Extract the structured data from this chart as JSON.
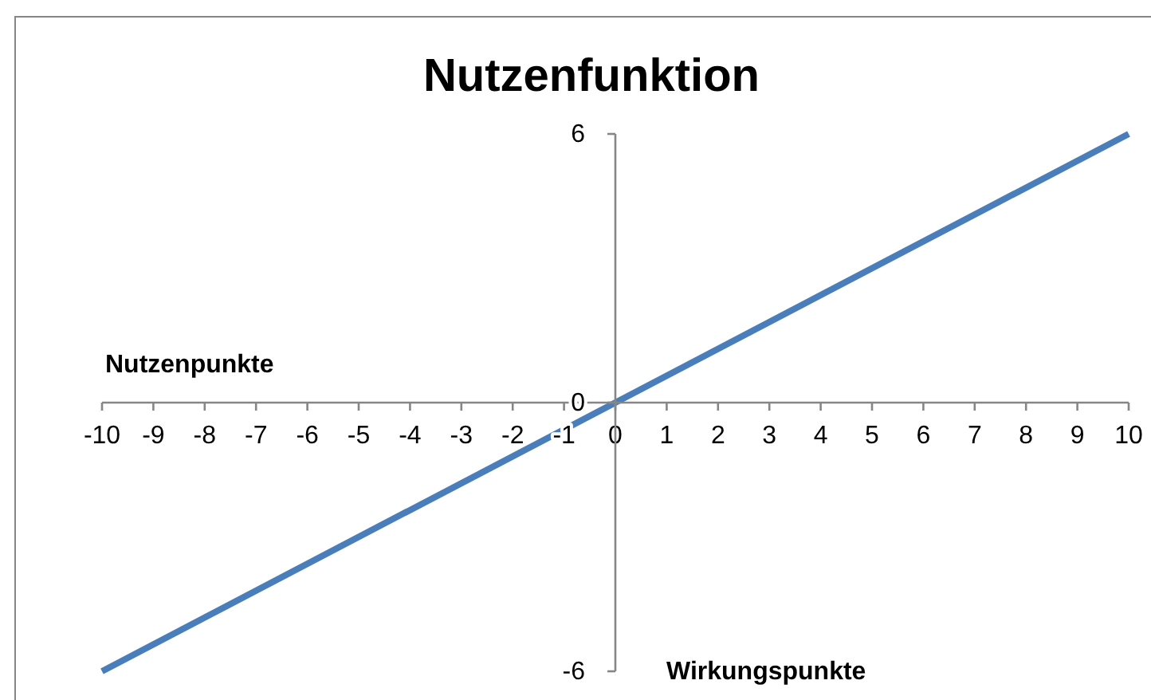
{
  "chart_data": {
    "type": "line",
    "title": "Nutzenfunktion",
    "xlabel": "Wirkungspunkte",
    "ylabel": "Nutzenpunkte",
    "x": [
      -10,
      10
    ],
    "series": [
      {
        "color": "#4a7ebb",
        "values": [
          -6,
          6
        ]
      }
    ],
    "xlim": [
      -10,
      10
    ],
    "xticks": [
      -10,
      -9,
      -8,
      -7,
      -6,
      -5,
      -4,
      -3,
      -2,
      -1,
      0,
      1,
      2,
      3,
      4,
      5,
      6,
      7,
      8,
      9,
      10
    ],
    "ylim": [
      -6,
      6
    ],
    "yticks": [
      -6,
      0,
      6
    ]
  }
}
